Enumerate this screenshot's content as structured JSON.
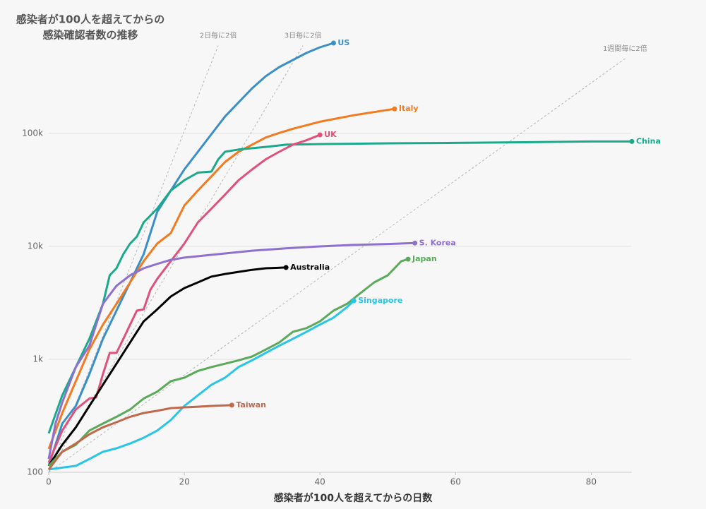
{
  "chart_data": {
    "type": "line",
    "title": [
      "感染者が100人を超えてからの",
      "感染確認者数の推移"
    ],
    "x_label": "感染者が100人を超えてからの日数",
    "xlim": [
      0,
      86
    ],
    "xticks": [
      0,
      20,
      40,
      60,
      80
    ],
    "ylim": [
      100,
      1000000
    ],
    "log_scale": true,
    "grid": true,
    "yticks": [
      100,
      {
        "value": 1000,
        "label": "1k"
      },
      {
        "value": 10000,
        "label": "10k"
      },
      {
        "value": 100000,
        "label": "100k"
      }
    ],
    "reference_lines": [
      {
        "label": "2日毎に2倍",
        "color": "#b5b5b5",
        "x": [
          0,
          25
        ],
        "values": [
          100,
          600000
        ]
      },
      {
        "label": "3日毎に2倍",
        "color": "#b5b5b5",
        "x": [
          0,
          37.5
        ],
        "values": [
          100,
          600000
        ]
      },
      {
        "label": "1週間毎に2倍",
        "color": "#b5b5b5",
        "x": [
          0,
          85
        ],
        "values": [
          100,
          460000
        ]
      }
    ],
    "series": [
      {
        "name": "US",
        "color": "#3a8fc7",
        "x": [
          0,
          2,
          4,
          6,
          8,
          10,
          12,
          14,
          16,
          18,
          20,
          22,
          24,
          26,
          28,
          30,
          32,
          34,
          36,
          38,
          40,
          42
        ],
        "values": [
          114,
          270,
          387,
          739,
          1518,
          2700,
          4800,
          8530,
          20200,
          31200,
          48000,
          68800,
          98600,
          141000,
          188000,
          251000,
          321000,
          387000,
          447000,
          516000,
          579000,
          631000
        ]
      },
      {
        "name": "Italy",
        "color": "#f47a20",
        "x": [
          0,
          2,
          4,
          6,
          8,
          10,
          12,
          14,
          16,
          18,
          20,
          22,
          24,
          26,
          28,
          30,
          32,
          34,
          36,
          40,
          45,
          51
        ],
        "values": [
          161,
          335,
          640,
          1220,
          2030,
          3100,
          4800,
          7400,
          10600,
          13100,
          23000,
          31200,
          41700,
          55800,
          68800,
          79500,
          92000,
          101000,
          110000,
          127000,
          145000,
          165000
        ]
      },
      {
        "name": "China",
        "color": "#1aa98a",
        "x": [
          0,
          2,
          4,
          6,
          7,
          8,
          9,
          10,
          11,
          12,
          13,
          14,
          16,
          18,
          20,
          22,
          24,
          25,
          26,
          28,
          32,
          35,
          40,
          50,
          60,
          70,
          80,
          86
        ],
        "values": [
          221,
          480,
          855,
          1518,
          2170,
          3100,
          5540,
          6400,
          8530,
          10600,
          12200,
          16300,
          21600,
          31200,
          38500,
          45000,
          46000,
          59000,
          68800,
          72000,
          76000,
          79500,
          80500,
          81800,
          82500,
          83500,
          84900,
          84900
        ]
      },
      {
        "name": "UK",
        "color": "#e0507a",
        "x": [
          0,
          2,
          4,
          6,
          7,
          8,
          9,
          10,
          11,
          12,
          13,
          14,
          15,
          16,
          18,
          20,
          22,
          24,
          26,
          28,
          30,
          32,
          34,
          36,
          38,
          40
        ],
        "values": [
          122,
          234,
          360,
          450,
          460,
          740,
          1140,
          1140,
          1518,
          2030,
          2700,
          2770,
          4140,
          5160,
          7400,
          10600,
          16300,
          21600,
          28700,
          38500,
          48000,
          59000,
          68800,
          79500,
          87000,
          97200
        ]
      },
      {
        "name": "S. Korea",
        "color": "#8e70d0",
        "x": [
          0,
          1,
          2,
          4,
          6,
          8,
          10,
          12,
          14,
          16,
          18,
          20,
          25,
          30,
          35,
          40,
          45,
          50,
          54
        ],
        "values": [
          131,
          270,
          416,
          855,
          1320,
          3100,
          4480,
          5540,
          6400,
          7000,
          7600,
          7950,
          8530,
          9160,
          9600,
          10000,
          10300,
          10500,
          10700
        ]
      },
      {
        "name": "Australia",
        "color": "#000000",
        "x": [
          0,
          2,
          4,
          6,
          8,
          10,
          12,
          14,
          16,
          18,
          20,
          22,
          24,
          26,
          28,
          30,
          32,
          35
        ],
        "values": [
          114,
          175,
          250,
          386,
          595,
          915,
          1410,
          2170,
          2770,
          3600,
          4270,
          4800,
          5400,
          5700,
          5950,
          6200,
          6400,
          6500
        ]
      },
      {
        "name": "Japan",
        "color": "#5aaa5a",
        "x": [
          0,
          2,
          4,
          6,
          8,
          10,
          12,
          14,
          16,
          18,
          20,
          22,
          24,
          26,
          28,
          30,
          32,
          34,
          36,
          38,
          40,
          42,
          44,
          46,
          48,
          50,
          52,
          53
        ],
        "values": [
          114,
          152,
          175,
          234,
          270,
          310,
          360,
          450,
          517,
          640,
          688,
          790,
          855,
          915,
          980,
          1060,
          1220,
          1410,
          1750,
          1890,
          2170,
          2700,
          3100,
          3870,
          4800,
          5540,
          7400,
          7700
        ]
      },
      {
        "name": "Singapore",
        "color": "#29c5e6",
        "x": [
          0,
          2,
          4,
          6,
          8,
          10,
          12,
          14,
          16,
          18,
          20,
          22,
          24,
          26,
          28,
          30,
          32,
          34,
          36,
          38,
          40,
          42,
          44,
          45
        ],
        "values": [
          106,
          110,
          114,
          131,
          152,
          163,
          180,
          202,
          234,
          290,
          387,
          480,
          595,
          688,
          855,
          980,
          1140,
          1320,
          1518,
          1750,
          2030,
          2340,
          2900,
          3300
        ]
      },
      {
        "name": "Taiwan",
        "color": "#c0694a",
        "x": [
          0,
          2,
          4,
          6,
          8,
          10,
          12,
          14,
          16,
          18,
          20,
          22,
          24,
          27
        ],
        "values": [
          106,
          152,
          180,
          217,
          250,
          278,
          310,
          335,
          350,
          370,
          376,
          381,
          387,
          393
        ]
      }
    ]
  }
}
